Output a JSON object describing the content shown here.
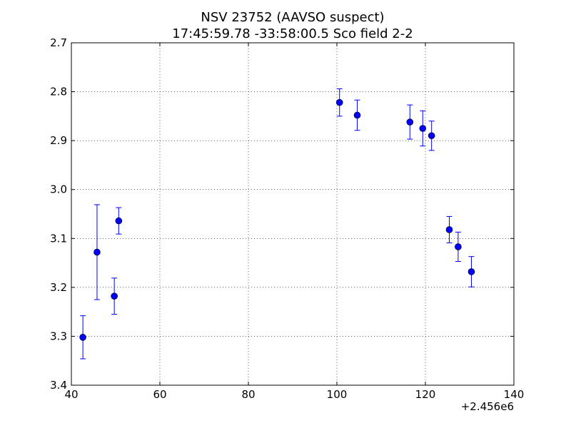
{
  "chart_data": {
    "type": "scatter",
    "title_line1": "NSV 23752  (AAVSO suspect)",
    "title_line2": "17:45:59.78 -33:58:00.5 Sco field 2-2",
    "xlabel": "",
    "ylabel": "",
    "x_offset_label": "+2.456e6",
    "xlim": [
      40,
      140
    ],
    "ylim": [
      3.4,
      2.7
    ],
    "y_inverted": true,
    "grid": true,
    "x_ticks": [
      40,
      60,
      80,
      100,
      120,
      140
    ],
    "x_tick_labels": [
      "40",
      "60",
      "80",
      "100",
      "120",
      "140"
    ],
    "y_ticks": [
      2.7,
      2.8,
      2.9,
      3.0,
      3.1,
      3.2,
      3.3,
      3.4
    ],
    "y_tick_labels": [
      "2.7",
      "2.8",
      "2.9",
      "3.0",
      "3.1",
      "3.2",
      "3.3",
      "3.4"
    ],
    "marker_color": "#0000ff",
    "points": [
      {
        "x": 42.6,
        "y": 3.302,
        "err": 0.044
      },
      {
        "x": 45.8,
        "y": 3.128,
        "err": 0.097
      },
      {
        "x": 49.7,
        "y": 3.218,
        "err": 0.037
      },
      {
        "x": 50.7,
        "y": 3.064,
        "err": 0.027
      },
      {
        "x": 100.6,
        "y": 2.822,
        "err": 0.028
      },
      {
        "x": 104.6,
        "y": 2.848,
        "err": 0.031
      },
      {
        "x": 116.5,
        "y": 2.862,
        "err": 0.035
      },
      {
        "x": 119.4,
        "y": 2.875,
        "err": 0.036
      },
      {
        "x": 121.4,
        "y": 2.89,
        "err": 0.03
      },
      {
        "x": 125.4,
        "y": 3.082,
        "err": 0.027
      },
      {
        "x": 127.4,
        "y": 3.117,
        "err": 0.03
      },
      {
        "x": 130.4,
        "y": 3.168,
        "err": 0.031
      }
    ]
  }
}
